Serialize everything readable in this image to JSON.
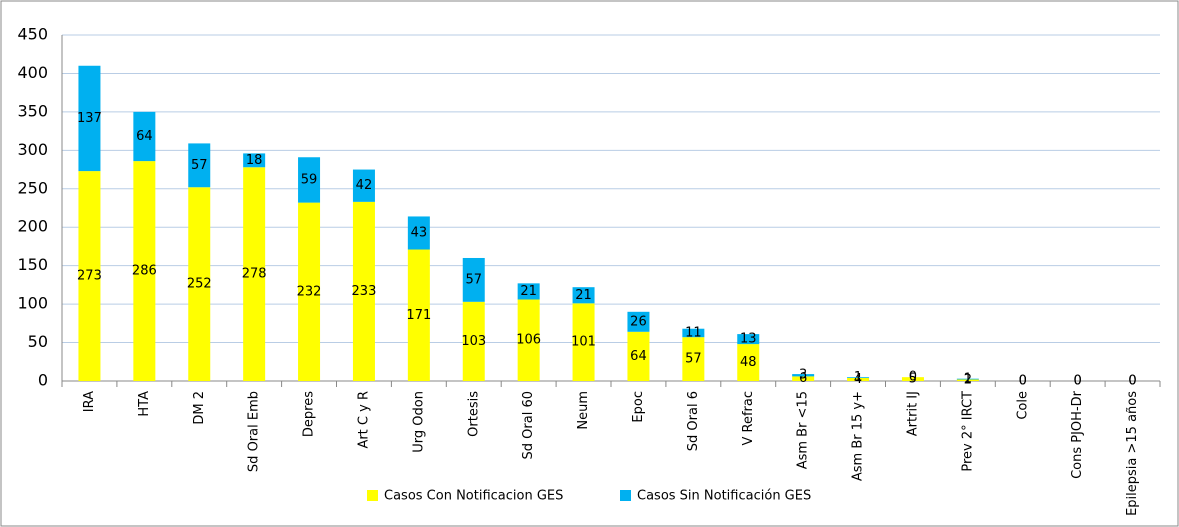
{
  "chart_data": {
    "type": "stacked_bar",
    "categories": [
      "IRA",
      "HTA",
      "DM 2",
      "Sd Oral Emb",
      "Depres",
      "Art C y R",
      "Urg Odon",
      "Ortesis",
      "Sd Oral 60",
      "Neum",
      "Epoc",
      "Sd Oral 6",
      "V Refrac",
      "Asm Br <15",
      "Asm Br 15 y+",
      "Artrit IJ",
      "Prev 2° IRCT",
      "Cole",
      "Cons PJOH-Dr",
      "Epilepsia >15 años"
    ],
    "series": [
      {
        "name": "Casos Con Notificacion GES",
        "color": "#ffff00",
        "values": [
          273,
          286,
          252,
          278,
          232,
          233,
          171,
          103,
          106,
          101,
          64,
          57,
          48,
          6,
          4,
          5,
          2,
          0,
          0,
          0
        ]
      },
      {
        "name": "Casos Sin Notificación GES",
        "color": "#00b0f0",
        "values": [
          137,
          64,
          57,
          18,
          59,
          42,
          43,
          57,
          21,
          21,
          26,
          11,
          13,
          3,
          1,
          0,
          1,
          0,
          0,
          0
        ]
      }
    ],
    "ylim": [
      0,
      450
    ],
    "yticks": [
      0,
      50,
      100,
      150,
      200,
      250,
      300,
      350,
      400,
      450
    ],
    "grid": true,
    "legend": "bottom"
  }
}
